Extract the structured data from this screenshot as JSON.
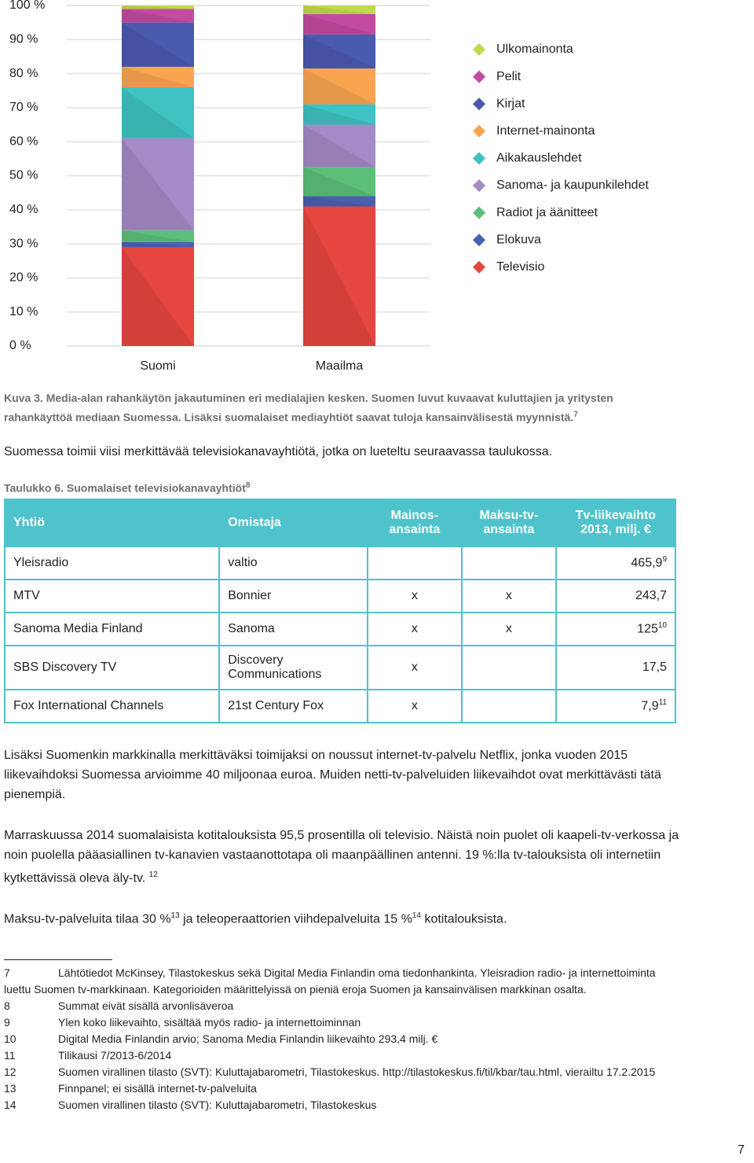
{
  "chart_data": {
    "type": "stacked-bar",
    "categories": [
      "Suomi",
      "Maailma"
    ],
    "series": [
      {
        "name": "Televisio",
        "color": "#e5463f",
        "values": [
          29,
          41
        ]
      },
      {
        "name": "Elokuva",
        "color": "#4a5fb0",
        "values": [
          1.5,
          3
        ]
      },
      {
        "name": "Radiot ja äänitteet",
        "color": "#5bbf7a",
        "values": [
          3.5,
          8.5
        ]
      },
      {
        "name": "Sanoma- ja kaupunkilehdet",
        "color": "#a48ac6",
        "values": [
          27,
          12.5
        ]
      },
      {
        "name": "Aikakauslehdet",
        "color": "#3fc2c2",
        "values": [
          15,
          6
        ]
      },
      {
        "name": "Internet-mainonta",
        "color": "#f9a550",
        "values": [
          6,
          10.5
        ]
      },
      {
        "name": "Kirjat",
        "color": "#4a5aaf",
        "values": [
          13,
          10
        ]
      },
      {
        "name": "Pelit",
        "color": "#c24aa0",
        "values": [
          4,
          6
        ]
      },
      {
        "name": "Ulkomainonta",
        "color": "#c4d94a",
        "values": [
          1,
          2.5
        ]
      }
    ],
    "ylim": [
      0,
      100
    ],
    "yticks": [
      {
        "value": 0,
        "label": "0  %"
      },
      {
        "value": 10,
        "label": "10 %"
      },
      {
        "value": 20,
        "label": "20 %"
      },
      {
        "value": 30,
        "label": "30 %"
      },
      {
        "value": 40,
        "label": "40 %"
      },
      {
        "value": 50,
        "label": "50 %"
      },
      {
        "value": 60,
        "label": "60 %"
      },
      {
        "value": 70,
        "label": "70 %"
      },
      {
        "value": 80,
        "label": "80 %"
      },
      {
        "value": 90,
        "label": "90 %"
      },
      {
        "value": 100,
        "label": "100 %"
      }
    ],
    "grid": true,
    "legend": "right"
  },
  "document": {
    "caption": [
      {
        "text": "Kuva 3. Media-alan rahankäytön jakautuminen eri medialajien kesken. Suomen luvut kuvaavat kuluttajien ja yritysten rahankäyttöä mediaan Suomessa. Lisäksi suomalaiset mediayhtiöt saavat tuloja kansainvälisestä myynnistä."
      },
      {
        "sup": "7"
      }
    ],
    "intro": "Suomessa toimii viisi merkittävää televisiokanavayhtiötä, jotka on lueteltu seuraavassa taulukossa.",
    "table_caption": [
      {
        "text": "Taulukko 6. Suomalaiset televisiokanavayhtiöt"
      },
      {
        "sup": "8"
      }
    ],
    "table": {
      "header": [
        "Yhtiö",
        "Omistaja",
        "Mainos-ansainta",
        "Maksu-tv-ansainta",
        "Tv-liikevaihto 2013, milj. €"
      ],
      "rows": [
        [
          "Yleisradio",
          "valtio",
          "",
          "",
          {
            "text": "465,9",
            "sup": "9"
          }
        ],
        [
          "MTV",
          "Bonnier",
          "x",
          "x",
          "243,7"
        ],
        [
          "Sanoma Media Finland",
          "Sanoma",
          "x",
          "x",
          {
            "text": "125",
            "sup": "10"
          }
        ],
        [
          "SBS Discovery TV",
          "Discovery Communications",
          "x",
          "",
          "17,5"
        ],
        [
          "Fox International Channels",
          "21st Century Fox",
          "x",
          "",
          {
            "text": "7,9",
            "sup": "11"
          }
        ]
      ]
    },
    "paragraphs": [
      [
        {
          "text": "Lisäksi Suomenkin markkinalla merkittäväksi toimijaksi on noussut internet-tv-palvelu Netflix, jonka vuoden 2015 liikevaihdoksi Suomessa arvioimme 40 miljoonaa euroa. Muiden netti-tv-palveluiden liikevaihdot ovat merkittävästi tätä pienempiä."
        }
      ],
      [
        {
          "text": "Marraskuussa 2014 suomalaisista kotitalouksista 95,5 prosentilla oli televisio. Näistä noin puolet oli kaapeli-tv-verkossa ja noin puolella pääasiallinen tv-kanavien vastaanottotapa oli maanpäällinen antenni. 19 %:lla tv-talouksista oli internetiin kytkettävissä oleva äly-tv. "
        },
        {
          "sup": "12"
        }
      ],
      [
        {
          "text": "Maksu-tv-palveluita tilaa 30 %"
        },
        {
          "sup": "13"
        },
        {
          "text": " ja teleoperaattorien viihdepalveluita 15 %"
        },
        {
          "sup": "14"
        },
        {
          "text": " kotitalouksista."
        }
      ]
    ],
    "footnotes": [
      {
        "number": "7",
        "text": "Lähtötiedot McKinsey, Tilastokeskus sekä Digital Media Finlandin oma tiedonhankinta. Yleisradion radio- ja internettoiminta luettu Suomen tv-markkinaan. Kategorioiden määrittelyissä on pieniä eroja Suomen ja kansainvälisen markkinan osalta."
      },
      {
        "number": "8",
        "text": "Summat eivät sisällä arvonlisäveroa"
      },
      {
        "number": "9",
        "text": "Ylen koko liikevaihto, sisältää myös radio- ja internettoiminnan"
      },
      {
        "number": "10",
        "text": "Digital Media Finlandin arvio; Sanoma Media Finlandin liikevaihto 293,4 milj. €"
      },
      {
        "number": "11",
        "text": "Tilikausi 7/2013-6/2014"
      },
      {
        "number": "12",
        "text": "Suomen virallinen tilasto (SVT): Kuluttajabarometri, Tilastokeskus. http://tilastokeskus.fi/til/kbar/tau.html, vierailtu 17.2.2015"
      },
      {
        "number": "13",
        "text": "Finnpanel; ei sisällä internet-tv-palveluita"
      },
      {
        "number": "14",
        "text": "Suomen virallinen tilasto (SVT): Kuluttajabarometri, Tilastokeskus"
      }
    ],
    "page_number": "7"
  }
}
